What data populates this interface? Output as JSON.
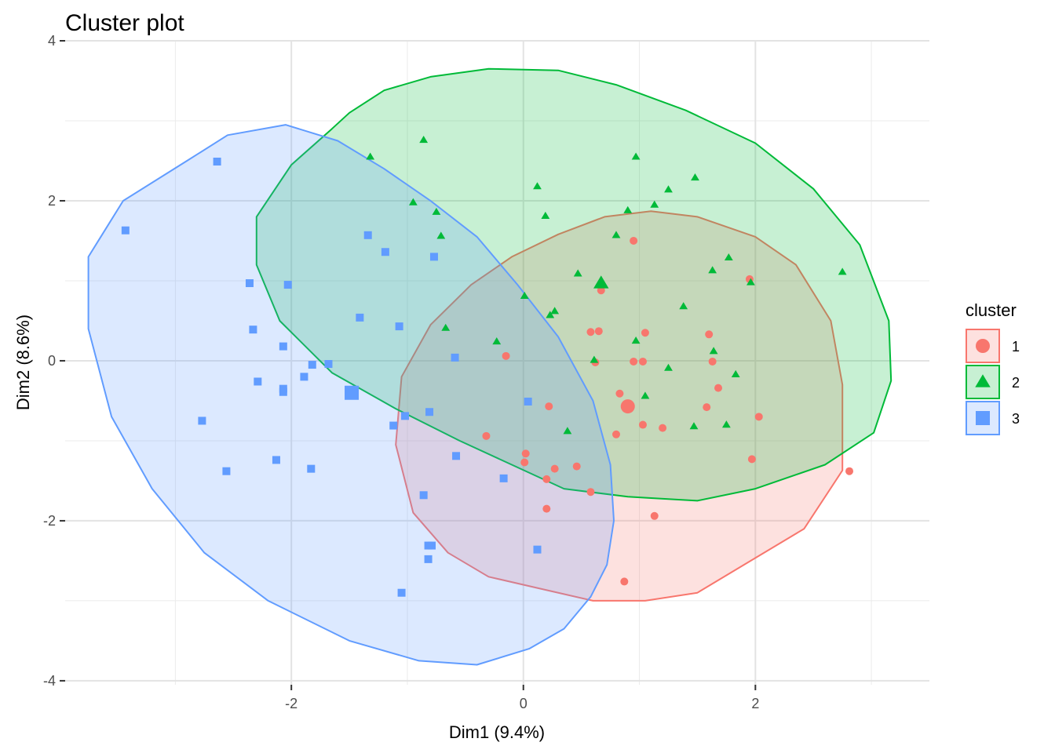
{
  "chart_data": {
    "type": "scatter",
    "title": "Cluster plot",
    "xlabel": "Dim1 (9.4%)",
    "ylabel": "Dim2 (8.6%)",
    "xlim": [
      -3.95,
      3.5
    ],
    "ylim": [
      -4.05,
      4.0
    ],
    "x_ticks": [
      -2,
      0,
      2
    ],
    "x_tick_labels": [
      "-2",
      "0",
      "2"
    ],
    "y_ticks": [
      -4,
      -2,
      0,
      2,
      4
    ],
    "y_tick_labels": [
      "-4",
      "-2",
      "0",
      "2",
      "4"
    ],
    "grid": true,
    "legend_title": "cluster",
    "legend_position": "right",
    "series": [
      {
        "name": "1",
        "color": "#F8766D",
        "marker": "circle",
        "centroid": [
          0.9,
          -0.57
        ],
        "hull": [
          [
            2.75,
            -1.37
          ],
          [
            2.42,
            -2.1
          ],
          [
            1.96,
            -2.5
          ],
          [
            1.5,
            -2.9
          ],
          [
            1.05,
            -3.0
          ],
          [
            0.6,
            -3.0
          ],
          [
            0.15,
            -2.85
          ],
          [
            -0.3,
            -2.7
          ],
          [
            -0.65,
            -2.4
          ],
          [
            -0.95,
            -1.9
          ],
          [
            -1.1,
            -1.05
          ],
          [
            -1.05,
            -0.2
          ],
          [
            -0.8,
            0.45
          ],
          [
            -0.45,
            0.95
          ],
          [
            -0.1,
            1.3
          ],
          [
            0.3,
            1.58
          ],
          [
            0.7,
            1.8
          ],
          [
            1.1,
            1.87
          ],
          [
            1.5,
            1.8
          ],
          [
            2.0,
            1.55
          ],
          [
            2.35,
            1.2
          ],
          [
            2.65,
            0.5
          ],
          [
            2.75,
            -0.3
          ]
        ],
        "points": [
          [
            0.95,
            1.5
          ],
          [
            1.95,
            1.02
          ],
          [
            0.67,
            0.88
          ],
          [
            0.58,
            0.36
          ],
          [
            0.65,
            0.37
          ],
          [
            1.05,
            0.35
          ],
          [
            1.6,
            0.33
          ],
          [
            -0.15,
            0.06
          ],
          [
            0.95,
            -0.01
          ],
          [
            1.03,
            -0.01
          ],
          [
            1.63,
            -0.01
          ],
          [
            0.62,
            -0.02
          ],
          [
            1.68,
            -0.34
          ],
          [
            0.83,
            -0.41
          ],
          [
            0.22,
            -0.57
          ],
          [
            1.58,
            -0.58
          ],
          [
            2.03,
            -0.7
          ],
          [
            1.03,
            -0.8
          ],
          [
            0.8,
            -0.92
          ],
          [
            1.2,
            -0.84
          ],
          [
            -0.32,
            -0.94
          ],
          [
            0.02,
            -1.16
          ],
          [
            0.01,
            -1.27
          ],
          [
            0.27,
            -1.35
          ],
          [
            0.46,
            -1.32
          ],
          [
            1.97,
            -1.23
          ],
          [
            2.81,
            -1.38
          ],
          [
            0.2,
            -1.48
          ],
          [
            0.58,
            -1.64
          ],
          [
            0.2,
            -1.85
          ],
          [
            1.13,
            -1.94
          ],
          [
            0.87,
            -2.76
          ]
        ]
      },
      {
        "name": "2",
        "color": "#00BA38",
        "marker": "triangle",
        "centroid": [
          0.67,
          0.97
        ],
        "hull": [
          [
            -1.65,
            2.9
          ],
          [
            -1.5,
            3.1
          ],
          [
            -1.2,
            3.38
          ],
          [
            -0.8,
            3.55
          ],
          [
            -0.3,
            3.65
          ],
          [
            0.3,
            3.63
          ],
          [
            0.8,
            3.45
          ],
          [
            1.4,
            3.13
          ],
          [
            2.0,
            2.72
          ],
          [
            2.5,
            2.15
          ],
          [
            2.9,
            1.45
          ],
          [
            3.15,
            0.5
          ],
          [
            3.17,
            -0.25
          ],
          [
            3.02,
            -0.9
          ],
          [
            2.6,
            -1.3
          ],
          [
            2.0,
            -1.6
          ],
          [
            1.5,
            -1.75
          ],
          [
            0.9,
            -1.7
          ],
          [
            0.35,
            -1.6
          ],
          [
            -0.1,
            -1.3
          ],
          [
            -0.55,
            -1.0
          ],
          [
            -1.1,
            -0.6
          ],
          [
            -1.65,
            -0.15
          ],
          [
            -2.1,
            0.5
          ],
          [
            -2.3,
            1.2
          ],
          [
            -2.3,
            1.8
          ],
          [
            -2.0,
            2.45
          ]
        ],
        "points": [
          [
            -0.86,
            2.76
          ],
          [
            -1.32,
            2.55
          ],
          [
            0.97,
            2.55
          ],
          [
            1.48,
            2.29
          ],
          [
            0.12,
            2.18
          ],
          [
            1.25,
            2.14
          ],
          [
            -0.95,
            1.98
          ],
          [
            1.13,
            1.95
          ],
          [
            -0.75,
            1.86
          ],
          [
            0.9,
            1.88
          ],
          [
            0.19,
            1.81
          ],
          [
            -0.71,
            1.56
          ],
          [
            0.8,
            1.57
          ],
          [
            1.77,
            1.29
          ],
          [
            1.63,
            1.13
          ],
          [
            0.47,
            1.09
          ],
          [
            2.75,
            1.11
          ],
          [
            1.96,
            0.98
          ],
          [
            0.01,
            0.81
          ],
          [
            1.38,
            0.68
          ],
          [
            0.27,
            0.62
          ],
          [
            0.23,
            0.57
          ],
          [
            -0.67,
            0.41
          ],
          [
            0.97,
            0.25
          ],
          [
            -0.23,
            0.24
          ],
          [
            1.64,
            0.12
          ],
          [
            0.61,
            0.01
          ],
          [
            1.25,
            -0.09
          ],
          [
            1.83,
            -0.17
          ],
          [
            1.05,
            -0.44
          ],
          [
            1.47,
            -0.82
          ],
          [
            1.75,
            -0.8
          ],
          [
            0.38,
            -0.88
          ]
        ]
      },
      {
        "name": "3",
        "color": "#619CFF",
        "marker": "square",
        "centroid": [
          -1.48,
          -0.4
        ],
        "hull": [
          [
            -2.9,
            2.5
          ],
          [
            -2.55,
            2.82
          ],
          [
            -2.05,
            2.95
          ],
          [
            -1.6,
            2.75
          ],
          [
            -1.2,
            2.4
          ],
          [
            -0.8,
            2.0
          ],
          [
            -0.4,
            1.55
          ],
          [
            -0.05,
            0.95
          ],
          [
            0.3,
            0.3
          ],
          [
            0.6,
            -0.5
          ],
          [
            0.75,
            -1.3
          ],
          [
            0.78,
            -2.0
          ],
          [
            0.72,
            -2.55
          ],
          [
            0.58,
            -2.95
          ],
          [
            0.35,
            -3.35
          ],
          [
            0.05,
            -3.6
          ],
          [
            -0.4,
            -3.8
          ],
          [
            -0.9,
            -3.75
          ],
          [
            -1.5,
            -3.5
          ],
          [
            -2.2,
            -3.0
          ],
          [
            -2.75,
            -2.4
          ],
          [
            -3.2,
            -1.6
          ],
          [
            -3.55,
            -0.7
          ],
          [
            -3.75,
            0.4
          ],
          [
            -3.75,
            1.3
          ],
          [
            -3.45,
            2.0
          ]
        ],
        "points": [
          [
            -2.64,
            2.49
          ],
          [
            -3.43,
            1.63
          ],
          [
            -1.34,
            1.57
          ],
          [
            -1.19,
            1.36
          ],
          [
            -0.77,
            1.3
          ],
          [
            -2.36,
            0.97
          ],
          [
            -2.03,
            0.95
          ],
          [
            -1.41,
            0.54
          ],
          [
            -1.07,
            0.43
          ],
          [
            -2.33,
            0.39
          ],
          [
            -2.07,
            0.18
          ],
          [
            -0.59,
            0.04
          ],
          [
            -1.68,
            -0.04
          ],
          [
            -1.82,
            -0.05
          ],
          [
            -1.89,
            -0.2
          ],
          [
            -2.29,
            -0.26
          ],
          [
            -2.07,
            -0.35
          ],
          [
            -2.07,
            -0.39
          ],
          [
            0.04,
            -0.51
          ],
          [
            -0.81,
            -0.64
          ],
          [
            -1.02,
            -0.69
          ],
          [
            -1.12,
            -0.81
          ],
          [
            -2.77,
            -0.75
          ],
          [
            -0.58,
            -1.19
          ],
          [
            -2.13,
            -1.24
          ],
          [
            -1.83,
            -1.35
          ],
          [
            -2.56,
            -1.38
          ],
          [
            -0.17,
            -1.47
          ],
          [
            -0.86,
            -1.68
          ],
          [
            -0.79,
            -2.31
          ],
          [
            -0.82,
            -2.31
          ],
          [
            -0.82,
            -2.48
          ],
          [
            0.12,
            -2.36
          ],
          [
            -1.05,
            -2.9
          ]
        ]
      }
    ]
  }
}
